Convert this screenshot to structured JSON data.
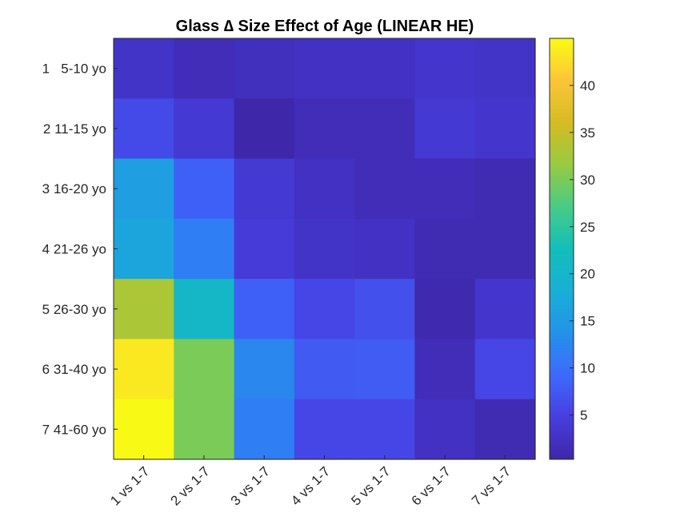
{
  "chart_data": {
    "type": "heatmap",
    "title": "Glass ∆ Size Effect of Age (LINEAR HE)",
    "x_categories": [
      "1 vs 1-7",
      "2 vs 1-7",
      "3 vs 1-7",
      "4 vs 1-7",
      "5 vs 1-7",
      "6 vs 1-7",
      "7 vs 1-7"
    ],
    "y_categories": [
      "1   5-10 yo",
      "2 11-15 yo",
      "3 16-20 yo",
      "4 21-26 yo",
      "5 26-30 yo",
      "6 31-40 yo",
      "7 41-60 yo"
    ],
    "values": [
      [
        2.9,
        1.6,
        2.0,
        2.4,
        2.4,
        3.3,
        2.9
      ],
      [
        6.0,
        3.8,
        0.4,
        1.6,
        1.6,
        3.8,
        3.3
      ],
      [
        15.5,
        8.2,
        3.8,
        2.4,
        1.6,
        1.6,
        1.2
      ],
      [
        16.5,
        11.5,
        4.2,
        2.9,
        2.4,
        1.2,
        1.2
      ],
      [
        33.0,
        20.5,
        8.2,
        5.6,
        6.6,
        0.8,
        3.3
      ],
      [
        43.5,
        30.0,
        12.5,
        7.6,
        7.8,
        1.6,
        5.6
      ],
      [
        44.8,
        30.0,
        11.5,
        5.6,
        5.6,
        2.4,
        1.2
      ]
    ],
    "colorbar": {
      "range": [
        0.3,
        45
      ],
      "ticks": [
        5,
        10,
        15,
        20,
        25,
        30,
        35,
        40
      ],
      "colormap": "parula"
    },
    "grid": false
  }
}
